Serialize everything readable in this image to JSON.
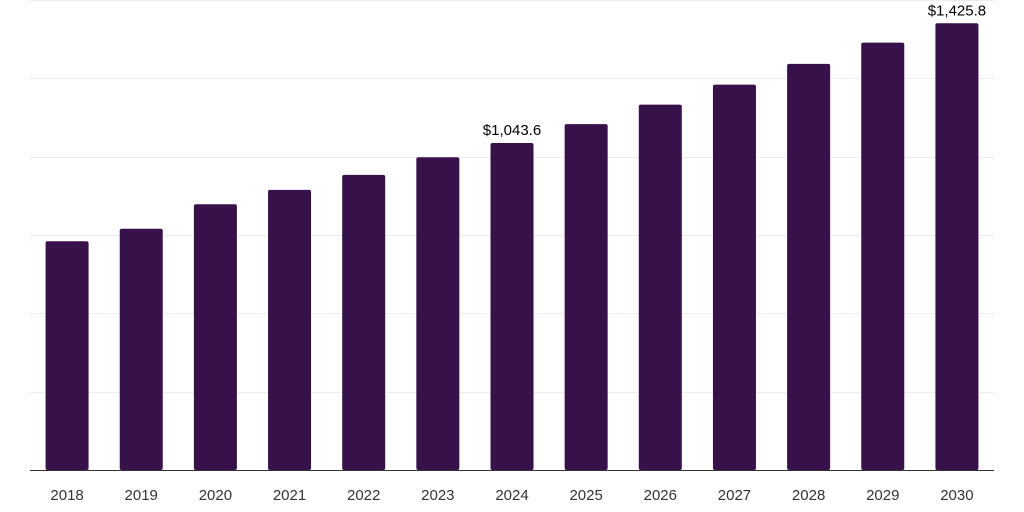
{
  "chart_data": {
    "type": "bar",
    "title": "",
    "xlabel": "",
    "ylabel": "",
    "categories": [
      "2018",
      "2019",
      "2020",
      "2021",
      "2022",
      "2023",
      "2024",
      "2025",
      "2026",
      "2027",
      "2028",
      "2029",
      "2030"
    ],
    "series": [
      {
        "values": [
          730,
          770,
          848,
          894,
          942,
          998,
          1043.6,
          1104,
          1166,
          1230,
          1296,
          1364,
          1425.8
        ],
        "color": "#36114a"
      }
    ],
    "ylim": [
      0,
      1500
    ],
    "grid": true,
    "legend": "none",
    "annotations": [
      {
        "index": 6,
        "text": "$1,043.6"
      },
      {
        "index": 12,
        "text": "$1,425.8"
      }
    ]
  }
}
